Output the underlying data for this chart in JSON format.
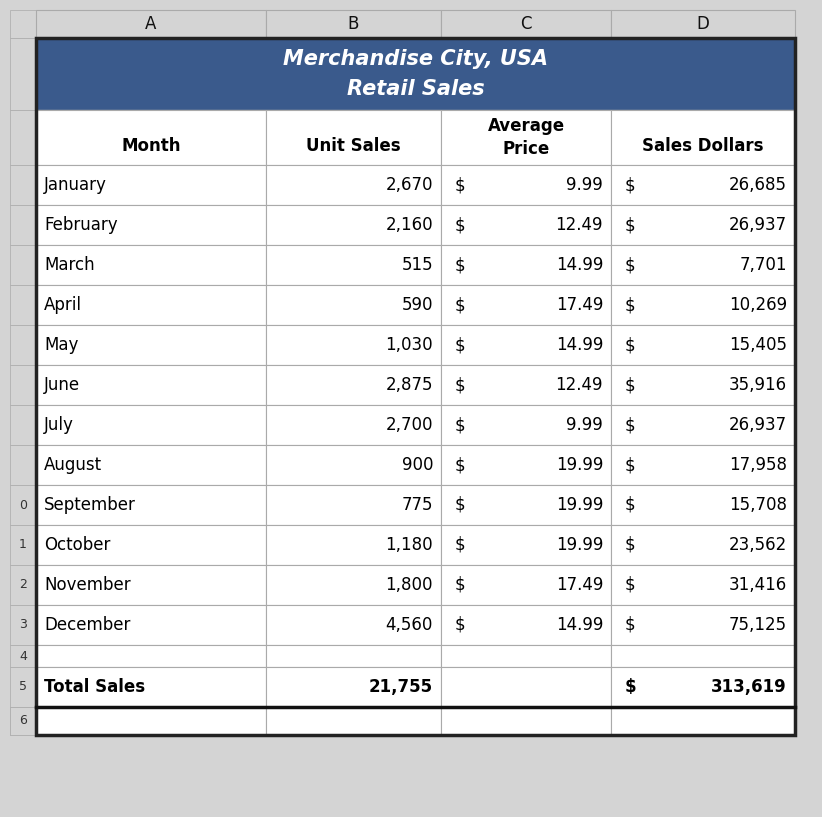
{
  "title_line1": "Merchandise City, USA",
  "title_line2": "Retail Sales",
  "title_bg_color": "#3A5A8C",
  "title_text_color": "#FFFFFF",
  "col_headers": [
    "A",
    "B",
    "C",
    "D"
  ],
  "header_bg_color": "#D4D4D4",
  "header_text_color": "#000000",
  "months": [
    "January",
    "February",
    "March",
    "April",
    "May",
    "June",
    "July",
    "August",
    "September",
    "October",
    "November",
    "December"
  ],
  "unit_sales": [
    2670,
    2160,
    515,
    590,
    1030,
    2875,
    2700,
    900,
    775,
    1180,
    1800,
    4560
  ],
  "avg_prices": [
    9.99,
    12.49,
    14.99,
    17.49,
    14.99,
    12.49,
    9.99,
    19.99,
    19.99,
    19.99,
    17.49,
    14.99
  ],
  "sales_dollars": [
    26685,
    26937,
    7701,
    10269,
    15405,
    35916,
    26937,
    17958,
    15708,
    23562,
    31416,
    75125
  ],
  "total_unit_sales": 21755,
  "total_sales_dollars": 313619,
  "grid_color": "#AAAAAA",
  "row_bg_white": "#FFFFFF",
  "cell_text_color": "#000000",
  "bold_row_label": "Total Sales",
  "fig_bg": "#D4D4D4",
  "font_size": 12,
  "fig_width": 8.22,
  "fig_height": 8.17
}
